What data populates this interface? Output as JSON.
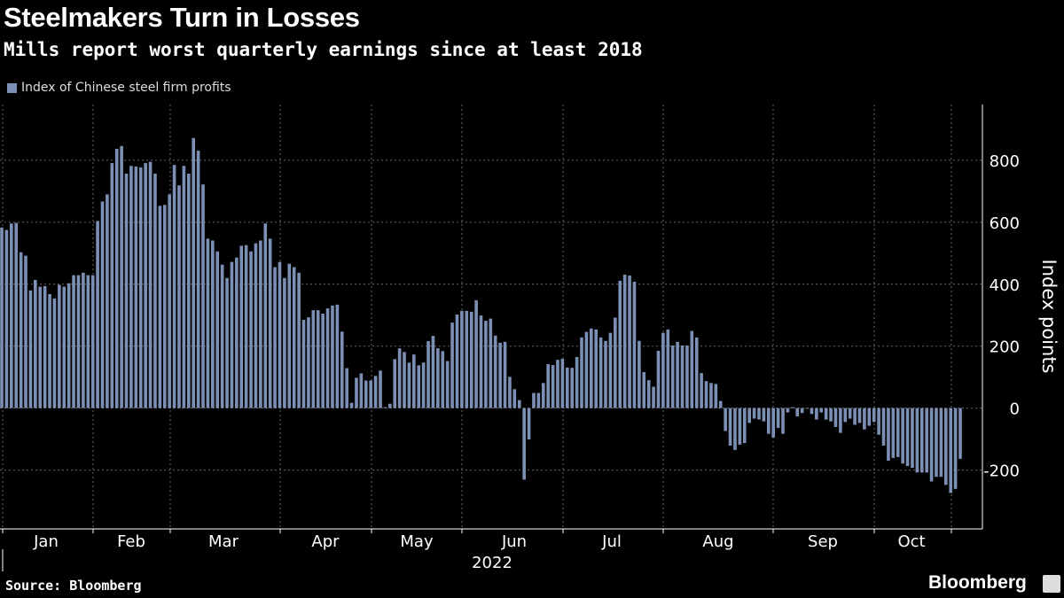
{
  "header": {
    "title": "Steelmakers Turn in Losses",
    "subtitle": "Mills report worst quarterly earnings since at least 2018"
  },
  "footer": {
    "source": "Source: Bloomberg",
    "brand": "Bloomberg"
  },
  "colors": {
    "bar": "#7c8fb4",
    "background": "#000000",
    "grid": "#666666"
  },
  "chart_data": {
    "type": "bar",
    "legend": {
      "label": "Index of Chinese steel firm profits",
      "placement": "top-left"
    },
    "ylabel": "Index points",
    "y_axis_side": "right",
    "yticks": [
      800,
      600,
      400,
      200,
      0,
      -200
    ],
    "ylim": [
      -390,
      980
    ],
    "grid": true,
    "x_tick_labels": [
      "Jan",
      "Feb",
      "Mar",
      "Apr",
      "May",
      "Jun",
      "Jul",
      "Aug",
      "Sep",
      "Oct"
    ],
    "x_year_label": "2022",
    "values": [
      583,
      575,
      596,
      598,
      503,
      492,
      380,
      414,
      392,
      394,
      368,
      354,
      398,
      392,
      403,
      429,
      429,
      437,
      429,
      429,
      604,
      667,
      690,
      791,
      837,
      846,
      757,
      782,
      780,
      777,
      791,
      795,
      757,
      653,
      656,
      690,
      785,
      719,
      782,
      757,
      872,
      831,
      722,
      547,
      541,
      506,
      463,
      420,
      472,
      486,
      524,
      526,
      506,
      532,
      541,
      596,
      547,
      455,
      472,
      420,
      466,
      455,
      437,
      285,
      293,
      316,
      316,
      305,
      322,
      331,
      334,
      247,
      129,
      17,
      98,
      112,
      89,
      89,
      104,
      121,
      3,
      14,
      158,
      193,
      181,
      147,
      173,
      138,
      147,
      216,
      233,
      193,
      184,
      152,
      276,
      302,
      314,
      314,
      311,
      348,
      299,
      282,
      289,
      234,
      211,
      214,
      101,
      61,
      26,
      -231,
      -101,
      49,
      49,
      81,
      142,
      139,
      156,
      159,
      131,
      130,
      165,
      228,
      246,
      257,
      254,
      228,
      217,
      243,
      292,
      411,
      431,
      428,
      408,
      217,
      116,
      90,
      69,
      185,
      243,
      254,
      202,
      214,
      202,
      202,
      249,
      228,
      113,
      87,
      81,
      78,
      23,
      -74,
      -121,
      -135,
      -118,
      -113,
      -48,
      -34,
      -37,
      -43,
      -83,
      -95,
      -64,
      -83,
      -14,
      3,
      -27,
      -16,
      -2,
      -19,
      -37,
      -14,
      -37,
      -43,
      -61,
      -80,
      -45,
      -34,
      -54,
      -48,
      -69,
      -57,
      -45,
      -86,
      -121,
      -170,
      -161,
      -158,
      -179,
      -187,
      -193,
      -208,
      -208,
      -208,
      -237,
      -222,
      -222,
      -248,
      -274,
      -261,
      -164
    ]
  }
}
